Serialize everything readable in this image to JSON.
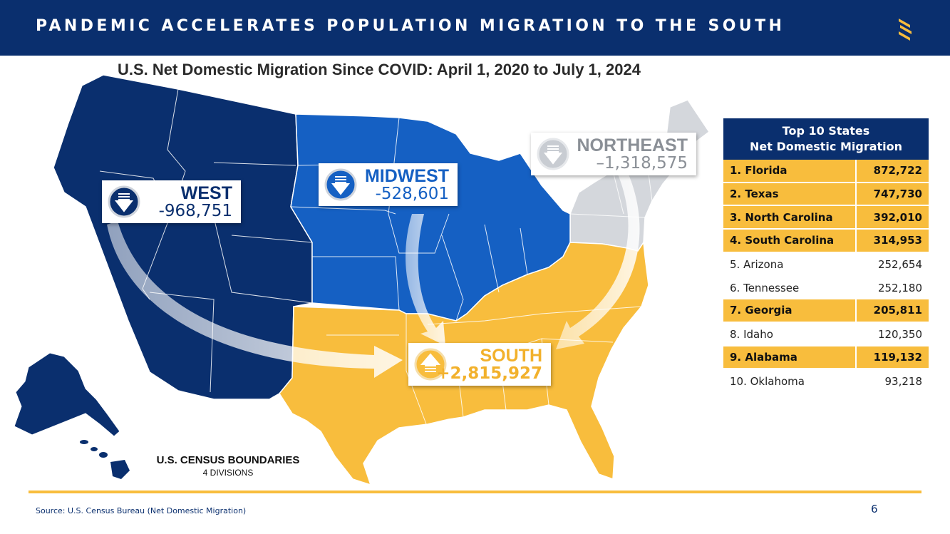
{
  "header": {
    "title": "PANDEMIC ACCELERATES POPULATION MIGRATION TO THE SOUTH",
    "logo_icon": "s-logo-icon"
  },
  "map": {
    "subtitle": "U.S. Net Domestic Migration Since COVID: April 1, 2020 to July 1, 2024",
    "regions": {
      "west": {
        "name": "WEST",
        "value": "-968,751",
        "color": "#0a2f6e",
        "direction": "down"
      },
      "midwest": {
        "name": "MIDWEST",
        "value": "-528,601",
        "color": "#1560c3",
        "direction": "down"
      },
      "northeast": {
        "name": "NORTHEAST",
        "value": "–1,318,575",
        "color": "#d4d7dc",
        "direction": "down"
      },
      "south": {
        "name": "SOUTH",
        "value": "+2,815,927",
        "color": "#f8bd3d",
        "direction": "up"
      }
    },
    "census": {
      "title": "U.S. CENSUS BOUNDARIES",
      "subtitle": "4 DIVISIONS"
    }
  },
  "table": {
    "title_line1": "Top 10 States",
    "title_line2": "Net Domestic Migration",
    "rows": [
      {
        "label": "1. Florida",
        "value": "872,722",
        "highlight": true
      },
      {
        "label": "2. Texas",
        "value": "747,730",
        "highlight": true
      },
      {
        "label": "3. North Carolina",
        "value": "392,010",
        "highlight": true
      },
      {
        "label": "4. South Carolina",
        "value": "314,953",
        "highlight": true
      },
      {
        "label": "5. Arizona",
        "value": "252,654",
        "highlight": false
      },
      {
        "label": "6. Tennessee",
        "value": "252,180",
        "highlight": false
      },
      {
        "label": "7. Georgia",
        "value": "205,811",
        "highlight": true
      },
      {
        "label": "8. Idaho",
        "value": "120,350",
        "highlight": false
      },
      {
        "label": "9. Alabama",
        "value": "119,132",
        "highlight": true
      },
      {
        "label": "10. Oklahoma",
        "value": "93,218",
        "highlight": false
      }
    ]
  },
  "footer": {
    "source": "Source: U.S. Census Bureau (Net Domestic Migration)",
    "page_number": "6"
  },
  "colors": {
    "navy": "#0a2f6e",
    "blue": "#1560c3",
    "gold": "#f8bd3d",
    "gray": "#d4d7dc"
  }
}
